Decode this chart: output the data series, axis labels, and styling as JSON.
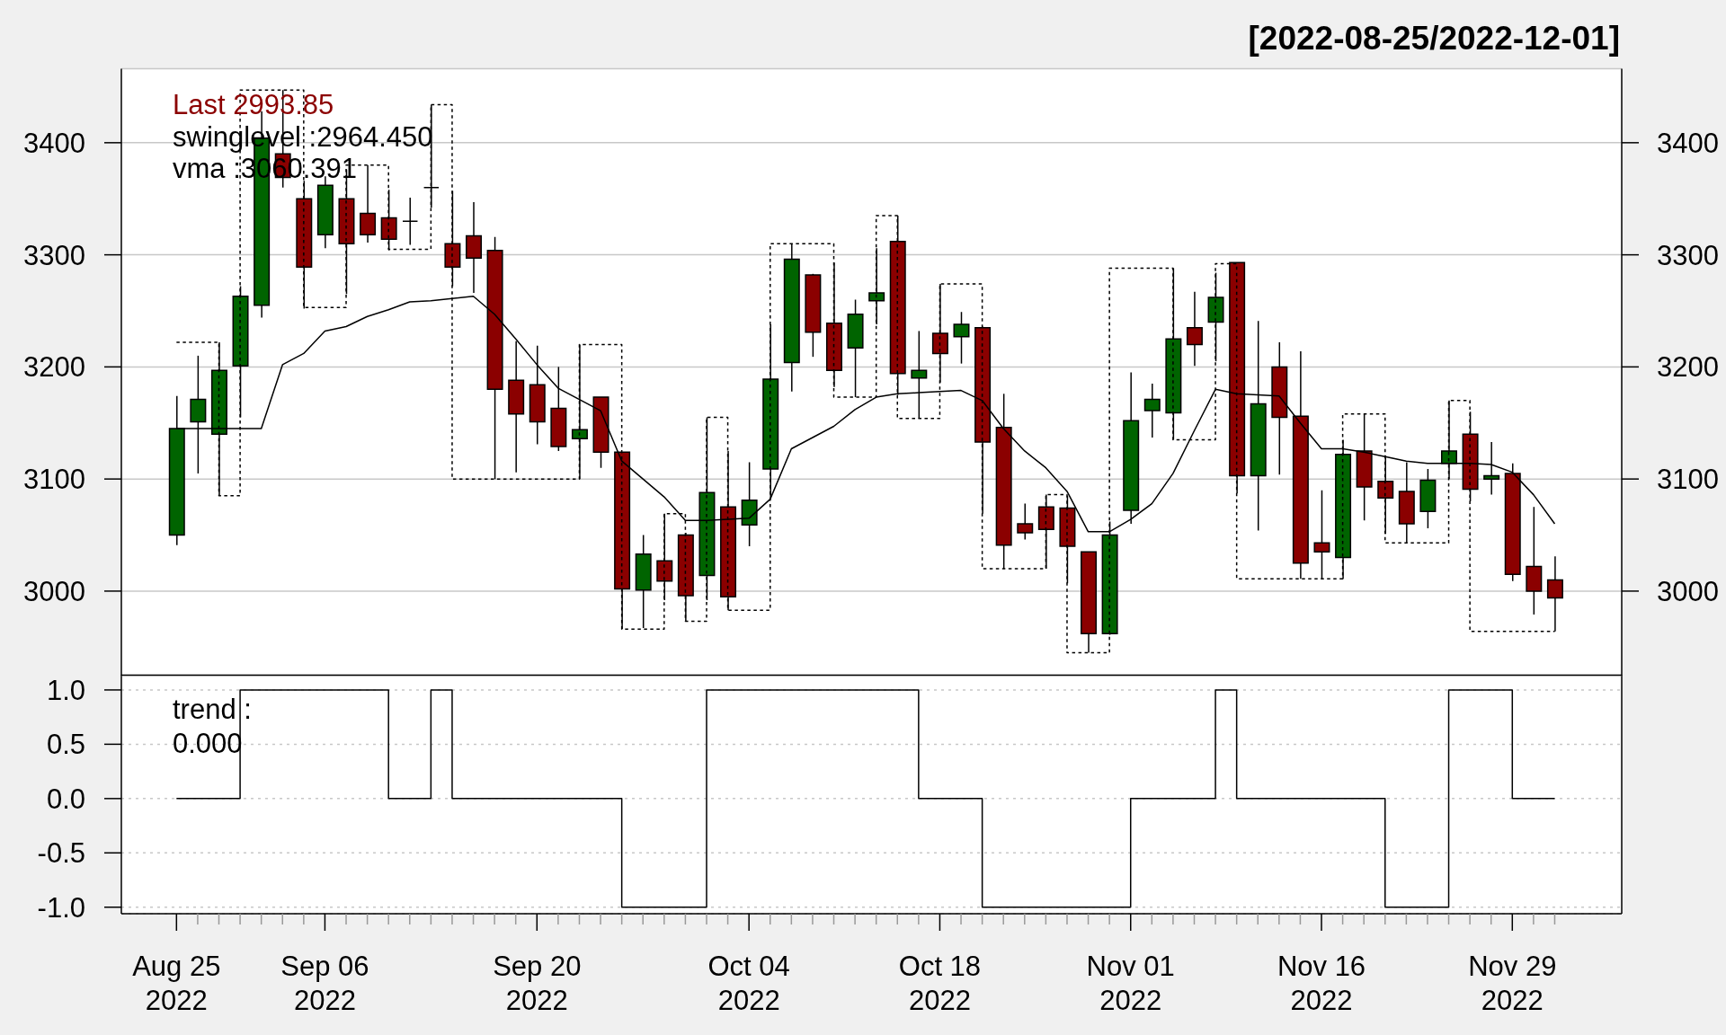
{
  "chart_data": [
    {
      "type": "candlestick",
      "title": "[2022-08-25/2022-12-01]",
      "categories": [
        null,
        null,
        null,
        null,
        null,
        null,
        null,
        null,
        null,
        null,
        null,
        null,
        null,
        null,
        null,
        null,
        null,
        null,
        null,
        null,
        null,
        null,
        null,
        null,
        null,
        null,
        null,
        null,
        null,
        null,
        null,
        null,
        null,
        null,
        null,
        null,
        null,
        null,
        null,
        null,
        null,
        null,
        null,
        null,
        null,
        null,
        null,
        null,
        null,
        null,
        null,
        null,
        null,
        null,
        null,
        null,
        null,
        null,
        null,
        null,
        null,
        null,
        null,
        null,
        null,
        null
      ],
      "series": [
        {
          "type": "candlestick",
          "ohlc": [
            [
              3050,
              3174,
              3041,
              3145
            ],
            [
              3151,
              3210,
              3105,
              3171
            ],
            [
              3140,
              3222,
              3085,
              3197
            ],
            [
              3201,
              3272,
              3155,
              3263
            ],
            [
              3255,
              3428,
              3244,
              3404
            ],
            [
              3390,
              3447,
              3360,
              3369
            ],
            [
              3350,
              3366,
              3252,
              3289
            ],
            [
              3318,
              3370,
              3306,
              3362
            ],
            [
              3350,
              3376,
              3265,
              3310
            ],
            [
              3337,
              3380,
              3311,
              3318
            ],
            [
              3333,
              3358,
              3304,
              3314
            ],
            [
              3330,
              3351,
              3309,
              3330
            ],
            [
              3360,
              3434,
              3342,
              3360
            ],
            [
              3310,
              3357,
              3272,
              3289
            ],
            [
              3317,
              3347,
              3266,
              3297
            ],
            [
              3304,
              3316,
              3100,
              3180
            ],
            [
              3188,
              3223,
              3106,
              3158
            ],
            [
              3184,
              3219,
              3131,
              3151
            ],
            [
              3163,
              3200,
              3125,
              3129
            ],
            [
              3136,
              3220,
              3100,
              3144
            ],
            [
              3173,
              3173,
              3110,
              3124
            ],
            [
              3124,
              3124,
              2966,
              3002
            ],
            [
              3001,
              3050,
              2967,
              3033
            ],
            [
              3027,
              3069,
              2992,
              3009
            ],
            [
              3050,
              3052,
              2973,
              2996
            ],
            [
              3014,
              3155,
              2992,
              3088
            ],
            [
              3075,
              3125,
              2983,
              2995
            ],
            [
              3059,
              3115,
              3040,
              3081
            ],
            [
              3109,
              3238,
              3082,
              3189
            ],
            [
              3204,
              3310,
              3178,
              3296
            ],
            [
              3282,
              3283,
              3209,
              3231
            ],
            [
              3239,
              3293,
              3182,
              3197
            ],
            [
              3217,
              3260,
              3173,
              3247
            ],
            [
              3259,
              3306,
              3238,
              3266
            ],
            [
              3312,
              3335,
              3175,
              3194
            ],
            [
              3190,
              3232,
              3154,
              3197
            ],
            [
              3230,
              3274,
              3186,
              3212
            ],
            [
              3227,
              3249,
              3203,
              3238
            ],
            [
              3235,
              3236,
              3069,
              3133
            ],
            [
              3146,
              3176,
              3020,
              3041
            ],
            [
              3060,
              3078,
              3046,
              3052
            ],
            [
              3075,
              3086,
              3020,
              3055
            ],
            [
              3074,
              3085,
              3007,
              3040
            ],
            [
              3035,
              3035,
              2945,
              2962
            ],
            [
              2962,
              3062,
              2961,
              3050
            ],
            [
              3072,
              3195,
              3060,
              3152
            ],
            [
              3161,
              3185,
              3137,
              3171
            ],
            [
              3159,
              3288,
              3135,
              3225
            ],
            [
              3235,
              3267,
              3201,
              3220
            ],
            [
              3240,
              3284,
              3205,
              3262
            ],
            [
              3293,
              3293,
              3087,
              3103
            ],
            [
              3103,
              3241,
              3054,
              3167
            ],
            [
              3200,
              3222,
              3104,
              3155
            ],
            [
              3156,
              3214,
              3011,
              3025
            ],
            [
              3043,
              3090,
              3011,
              3035
            ],
            [
              3030,
              3135,
              3011,
              3122
            ],
            [
              3125,
              3158,
              3063,
              3093
            ],
            [
              3098,
              3121,
              3051,
              3083
            ],
            [
              3089,
              3115,
              3043,
              3060
            ],
            [
              3071,
              3109,
              3056,
              3099
            ],
            [
              3114,
              3170,
              3100,
              3125
            ],
            [
              3140,
              3160,
              3080,
              3091
            ],
            [
              3100,
              3133,
              3086,
              3103
            ],
            [
              3105,
              3114,
              3009,
              3015
            ],
            [
              3022,
              3075,
              2979,
              3000
            ],
            [
              3010,
              3031,
              2964,
              2993.85
            ]
          ],
          "colors": [
            "#006400",
            "#006400",
            "#006400",
            "#006400",
            "#006400",
            "#8b0000",
            "#8b0000",
            "#006400",
            "#8b0000",
            "#8b0000",
            "#8b0000",
            "#000000",
            "#000000",
            "#8b0000",
            "#8b0000",
            "#8b0000",
            "#8b0000",
            "#8b0000",
            "#8b0000",
            "#006400",
            "#8b0000",
            "#8b0000",
            "#006400",
            "#8b0000",
            "#8b0000",
            "#006400",
            "#8b0000",
            "#006400",
            "#006400",
            "#006400",
            "#8b0000",
            "#8b0000",
            "#006400",
            "#006400",
            "#8b0000",
            "#006400",
            "#8b0000",
            "#006400",
            "#8b0000",
            "#8b0000",
            "#8b0000",
            "#8b0000",
            "#8b0000",
            "#8b0000",
            "#006400",
            "#006400",
            "#006400",
            "#006400",
            "#8b0000",
            "#006400",
            "#8b0000",
            "#006400",
            "#8b0000",
            "#8b0000",
            "#8b0000",
            "#006400",
            "#8b0000",
            "#8b0000",
            "#8b0000",
            "#006400",
            "#006400",
            "#8b0000",
            "#006400",
            "#8b0000",
            "#8b0000",
            "#8b0000"
          ]
        },
        {
          "type": "step",
          "color": "#000000",
          "line_style": "dotted",
          "values": [
            3222,
            3222,
            3085,
            3447,
            3447,
            3447,
            3253,
            3253,
            3380,
            3380,
            3305,
            3305,
            3434,
            3100,
            3100,
            3100,
            3100,
            3100,
            3100,
            3220,
            3220,
            2966,
            2966,
            3069,
            2973,
            3155,
            2983,
            2983,
            3310,
            3310,
            3310,
            3173,
            3173,
            3335,
            3154,
            3154,
            3274,
            3274,
            3020,
            3020,
            3020,
            3086,
            2945,
            2945,
            3288,
            3288,
            3288,
            3135,
            3135,
            3292,
            3011,
            3011,
            3011,
            3011,
            3011,
            3158,
            3158,
            3043,
            3043,
            3043,
            3170,
            2964,
            2964,
            2964,
            2964,
            2964
          ]
        },
        {
          "type": "line",
          "color": "#000000",
          "values": [
            3145,
            3145,
            3145,
            3145,
            3145,
            3202,
            3212,
            3232,
            3236,
            3245,
            3251,
            3258,
            3259,
            3261,
            3263,
            3247,
            3225,
            3202,
            3181,
            3171,
            3161,
            3116,
            3100,
            3084,
            3063,
            3063,
            3064,
            3065,
            3082,
            3127,
            3137,
            3147,
            3162,
            3173,
            3176,
            3177,
            3178,
            3179,
            3170,
            3145,
            3125,
            3110,
            3089,
            3053,
            3053,
            3064,
            3078,
            3105,
            3143,
            3180,
            3176,
            3175,
            3174,
            3150,
            3127,
            3127,
            3124,
            3120,
            3116,
            3114,
            3114,
            3114,
            3113,
            3106,
            3086,
            3060
          ]
        }
      ],
      "ylim": [
        2925,
        3466
      ],
      "yticks": [
        3000,
        3100,
        3200,
        3300,
        3400
      ],
      "y2lim": [
        2925,
        3466
      ],
      "y2ticks": [
        3000,
        3100,
        3200,
        3300,
        3400
      ],
      "grid": "y",
      "tick_labels": "y",
      "annotations": [
        "Last 2993.85",
        "swinglevel :2964.450",
        "vma :3060.391"
      ]
    },
    {
      "type": "step",
      "categories": [
        "Aug 25\n2022",
        null,
        null,
        null,
        null,
        null,
        null,
        "Sep 06\n2022",
        null,
        null,
        null,
        null,
        null,
        null,
        null,
        null,
        null,
        "Sep 20\n2022",
        null,
        null,
        null,
        null,
        null,
        null,
        null,
        null,
        null,
        "Oct 04\n2022",
        null,
        null,
        null,
        null,
        null,
        null,
        null,
        null,
        "Oct 18\n2022",
        null,
        null,
        null,
        null,
        null,
        null,
        null,
        null,
        "Nov 01\n2022",
        null,
        null,
        null,
        null,
        null,
        null,
        null,
        null,
        "Nov 16\n2022",
        null,
        null,
        null,
        null,
        null,
        null,
        null,
        null,
        "Nov 29\n2022",
        null,
        null
      ],
      "values": [
        0,
        0,
        0,
        1,
        1,
        1,
        1,
        1,
        1,
        1,
        0,
        0,
        1,
        0,
        0,
        0,
        0,
        0,
        0,
        0,
        0,
        -1,
        -1,
        -1,
        -1,
        1,
        1,
        1,
        1,
        1,
        1,
        1,
        1,
        1,
        1,
        0,
        0,
        0,
        -1,
        -1,
        -1,
        -1,
        -1,
        -1,
        -1,
        0,
        0,
        0,
        0,
        1,
        0,
        0,
        0,
        0,
        0,
        0,
        0,
        -1,
        -1,
        -1,
        1,
        1,
        1,
        0,
        0,
        0
      ],
      "color": "#000000",
      "ylim": [
        -1.06,
        1.14
      ],
      "yticks": [
        {
          "value": 1,
          "label": "1.0"
        },
        {
          "value": 0.5,
          "label": "0.5"
        },
        {
          "value": 0,
          "label": "0.0"
        },
        {
          "value": -0.5,
          "label": "-0.5"
        },
        {
          "value": -1,
          "label": "-1.0"
        }
      ],
      "grid": "y",
      "annotations": [
        "trend :\n0.000"
      ]
    }
  ]
}
